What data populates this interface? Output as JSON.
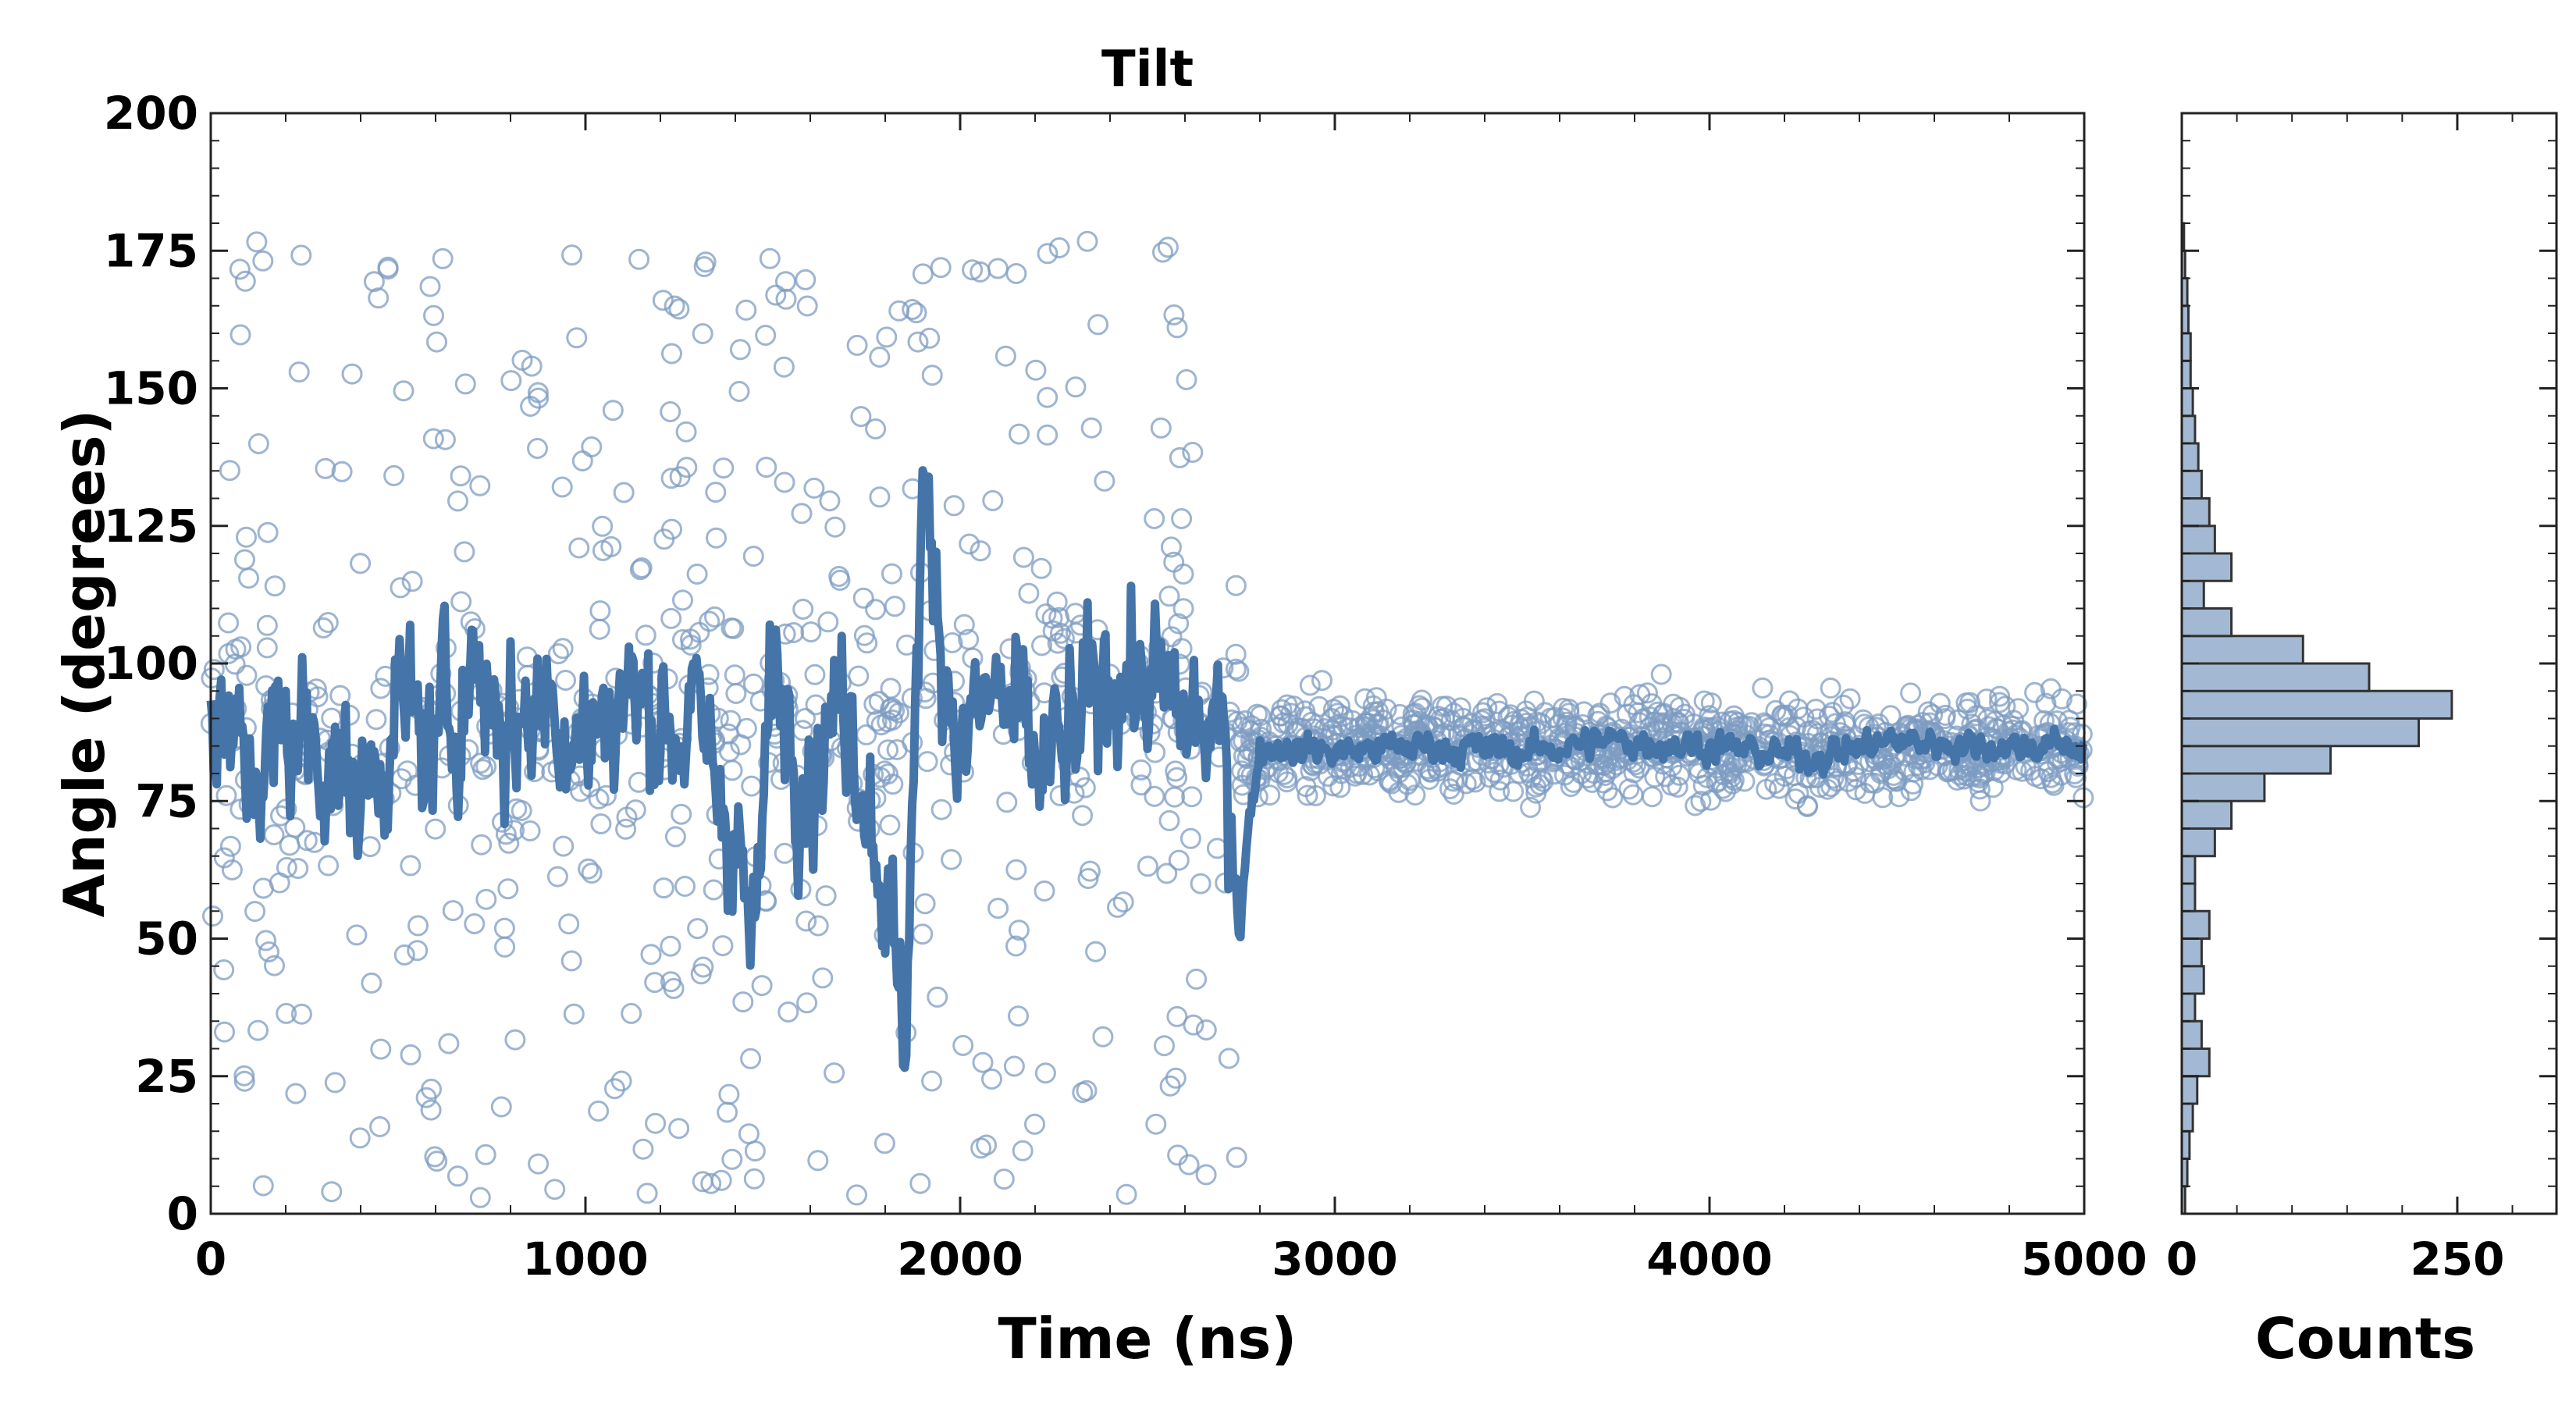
{
  "chart_data": [
    {
      "type": "scatter",
      "title": "Tilt",
      "xlabel": "Time (ns)",
      "ylabel": "Angle (degrees)",
      "xlim": [
        0,
        5000
      ],
      "ylim": [
        0,
        200
      ],
      "xticks": [
        "0",
        "1000",
        "2000",
        "3000",
        "4000",
        "5000"
      ],
      "yticks": [
        "0",
        "25",
        "50",
        "75",
        "100",
        "125",
        "150",
        "175",
        "200"
      ],
      "grid": false,
      "colors": {
        "points": "#7d9cc2",
        "line": "#4474a8"
      },
      "series": [
        {
          "kind": "scatter",
          "phases": [
            {
              "x_range": [
                0,
                2750
              ],
              "n_points": 700,
              "y_range": [
                2,
                177
              ],
              "concentration": "broad"
            },
            {
              "x_range": [
                2750,
                5000
              ],
              "n_points": 1000,
              "center": 85,
              "y_range": [
                57,
                105
              ]
            }
          ]
        },
        {
          "kind": "line",
          "x": [
            0,
            100,
            200,
            300,
            400,
            500,
            600,
            700,
            800,
            900,
            1000,
            1100,
            1200,
            1300,
            1400,
            1450,
            1500,
            1600,
            1700,
            1800,
            1850,
            1900,
            2000,
            2100,
            2200,
            2300,
            2400,
            2500,
            2600,
            2700,
            2750,
            2800,
            3000,
            3250,
            3500,
            3750,
            4000,
            4250,
            4500,
            4750,
            5000
          ],
          "y": [
            90,
            80,
            88,
            85,
            75,
            92,
            85,
            100,
            88,
            95,
            85,
            95,
            90,
            88,
            70,
            45,
            100,
            80,
            95,
            60,
            30,
            130,
            85,
            95,
            80,
            85,
            100,
            95,
            90,
            85,
            60,
            85,
            84,
            85,
            84,
            86,
            85,
            83,
            86,
            85,
            85
          ],
          "y_range": [
            24,
            142
          ]
        }
      ]
    },
    {
      "type": "bar",
      "orientation": "horizontal",
      "xlabel": "Counts",
      "xlim": [
        0,
        340
      ],
      "xticks": [
        "0",
        "250"
      ],
      "ylim": [
        0,
        200
      ],
      "bin_width": 5,
      "colors": {
        "fill": "#a3b9d3",
        "edge": "#333333"
      },
      "bins": [
        0,
        5,
        10,
        15,
        20,
        25,
        30,
        35,
        40,
        45,
        50,
        55,
        60,
        65,
        70,
        75,
        80,
        85,
        90,
        95,
        100,
        105,
        110,
        115,
        120,
        125,
        130,
        135,
        140,
        145,
        150,
        155,
        160,
        165,
        170,
        175
      ],
      "values": [
        3,
        5,
        7,
        10,
        14,
        25,
        18,
        12,
        20,
        18,
        25,
        12,
        12,
        30,
        45,
        75,
        135,
        215,
        245,
        170,
        110,
        45,
        20,
        45,
        30,
        25,
        18,
        15,
        12,
        10,
        8,
        8,
        6,
        5,
        3,
        2
      ]
    }
  ]
}
